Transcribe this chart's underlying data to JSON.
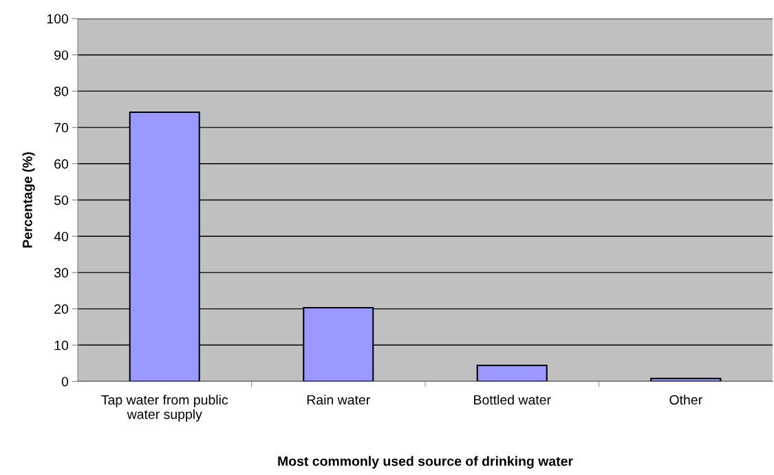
{
  "chart_data": {
    "type": "bar",
    "xlabel": "Most commonly used source of drinking water",
    "ylabel": "Percentage (%)",
    "categories": [
      "Tap water from public\nwater supply",
      "Rain water",
      "Bottled water",
      "Other"
    ],
    "values": [
      74.2,
      20.3,
      4.4,
      0.8
    ],
    "color": "#9999ff",
    "ylim": [
      0,
      100
    ],
    "yticks": [
      0,
      10,
      20,
      30,
      40,
      50,
      60,
      70,
      80,
      90,
      100
    ],
    "grid": "y"
  }
}
